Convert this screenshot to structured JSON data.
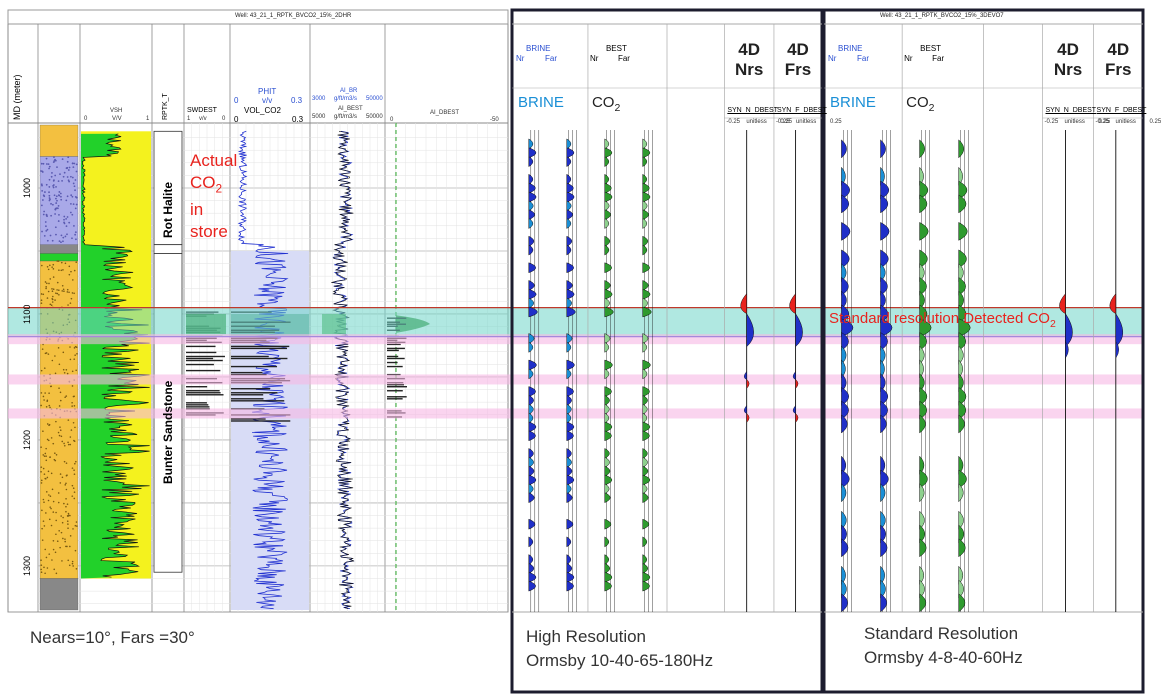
{
  "well_titles": [
    "Well: 43_21_1_RPTK_BVCO2_15%_2DHR",
    "Well: 43_21_1_RPTK_BVCO2_15%_3DEVO7"
  ],
  "md_axis": {
    "label": "MD (meter)",
    "ticks": [
      "1000",
      "1100",
      "1200",
      "1300"
    ],
    "range": [
      950,
      1335
    ]
  },
  "tracks": {
    "vsh": {
      "mnemonic": "VSH",
      "min": "0",
      "unit": "V/V",
      "max": "1"
    },
    "rptk": {
      "mnemonic": "RPTK_T"
    },
    "swdest": {
      "mnemonic": "SWDEST",
      "min": "1",
      "unit": "v/v",
      "max": "0"
    },
    "phit": {
      "mnemonic": "PHIT",
      "min": "0",
      "unit": "v/v",
      "max": "0.3",
      "second_mnemonic": "VOL_CO2",
      "second_min": "0",
      "second_max": "0.3"
    },
    "ai": {
      "mnemonic": "AI_BR",
      "second_mnemonic": "AI_BEST",
      "min": "3000",
      "unit": "g/ft/m3/s",
      "max": "50000",
      "second_min": "5000",
      "second_unit": "g/ft/m3/s",
      "second_max": "50000"
    },
    "ai_dbest": {
      "mnemonic": "AI_DBEST",
      "min": "0",
      "max": "-50"
    }
  },
  "formations": [
    {
      "name": "Rot Halite"
    },
    {
      "name": "Bunter Sandstone"
    }
  ],
  "annotations": {
    "actual_co2": [
      "Actual",
      "CO",
      "2",
      "in",
      "store"
    ],
    "detected": "Standard resolution Detected CO",
    "detected_sub": "2"
  },
  "panels": [
    {
      "brine_header": "BRINE",
      "best_header": "BEST",
      "nr": "Nr",
      "far": "Far",
      "brine_label": "BRINE",
      "co2_label": "CO",
      "co2_sub": "2",
      "nrs_title": [
        "4D",
        "Nrs"
      ],
      "frs_title": [
        "4D",
        "Frs"
      ],
      "nrs_mnemonic": "SYN_N_DBEST",
      "frs_mnemonic": "SYN_F_DBEST",
      "scale_min": "-0.25",
      "scale_unit": "unitless",
      "scale_max": "0.25",
      "caption": [
        "High Resolution",
        "Ormsby 10-40-65-180Hz"
      ]
    },
    {
      "brine_header": "BRINE",
      "best_header": "BEST",
      "nr": "Nr",
      "far": "Far",
      "brine_label": "BRINE",
      "co2_label": "CO",
      "co2_sub": "2",
      "nrs_title": [
        "4D",
        "Nrs"
      ],
      "frs_title": [
        "4D",
        "Frs"
      ],
      "nrs_mnemonic": "SYN_N_DBEST",
      "frs_mnemonic": "SYN_F_DBEST",
      "scale_min": "-0.25",
      "scale_unit": "unitless",
      "scale_max": "0.25",
      "caption": [
        "Standard Resolution",
        "Ormsby 4-8-40-60Hz"
      ]
    }
  ],
  "angle_caption": "Nears=10°,  Fars =30°",
  "chart_data": {
    "type": "well-log-and-synthetic-seismogram",
    "md_range": [
      950,
      1335
    ],
    "co2_zone_md": [
      1095,
      1118
    ],
    "highlight_md": [
      1120,
      1152,
      1179
    ],
    "colors": {
      "brine": "#1a8fd6",
      "brine_dark": "#1f2fc8",
      "co2": "#2e9a2e",
      "co2_light": "#8ed18e",
      "vsh": "#f4f21e",
      "sand": "#22d12a",
      "halite": "#a9a9e8",
      "zone": "#6fd6c8",
      "pink": "#f7b8e4",
      "red": "#e8231e"
    }
  }
}
